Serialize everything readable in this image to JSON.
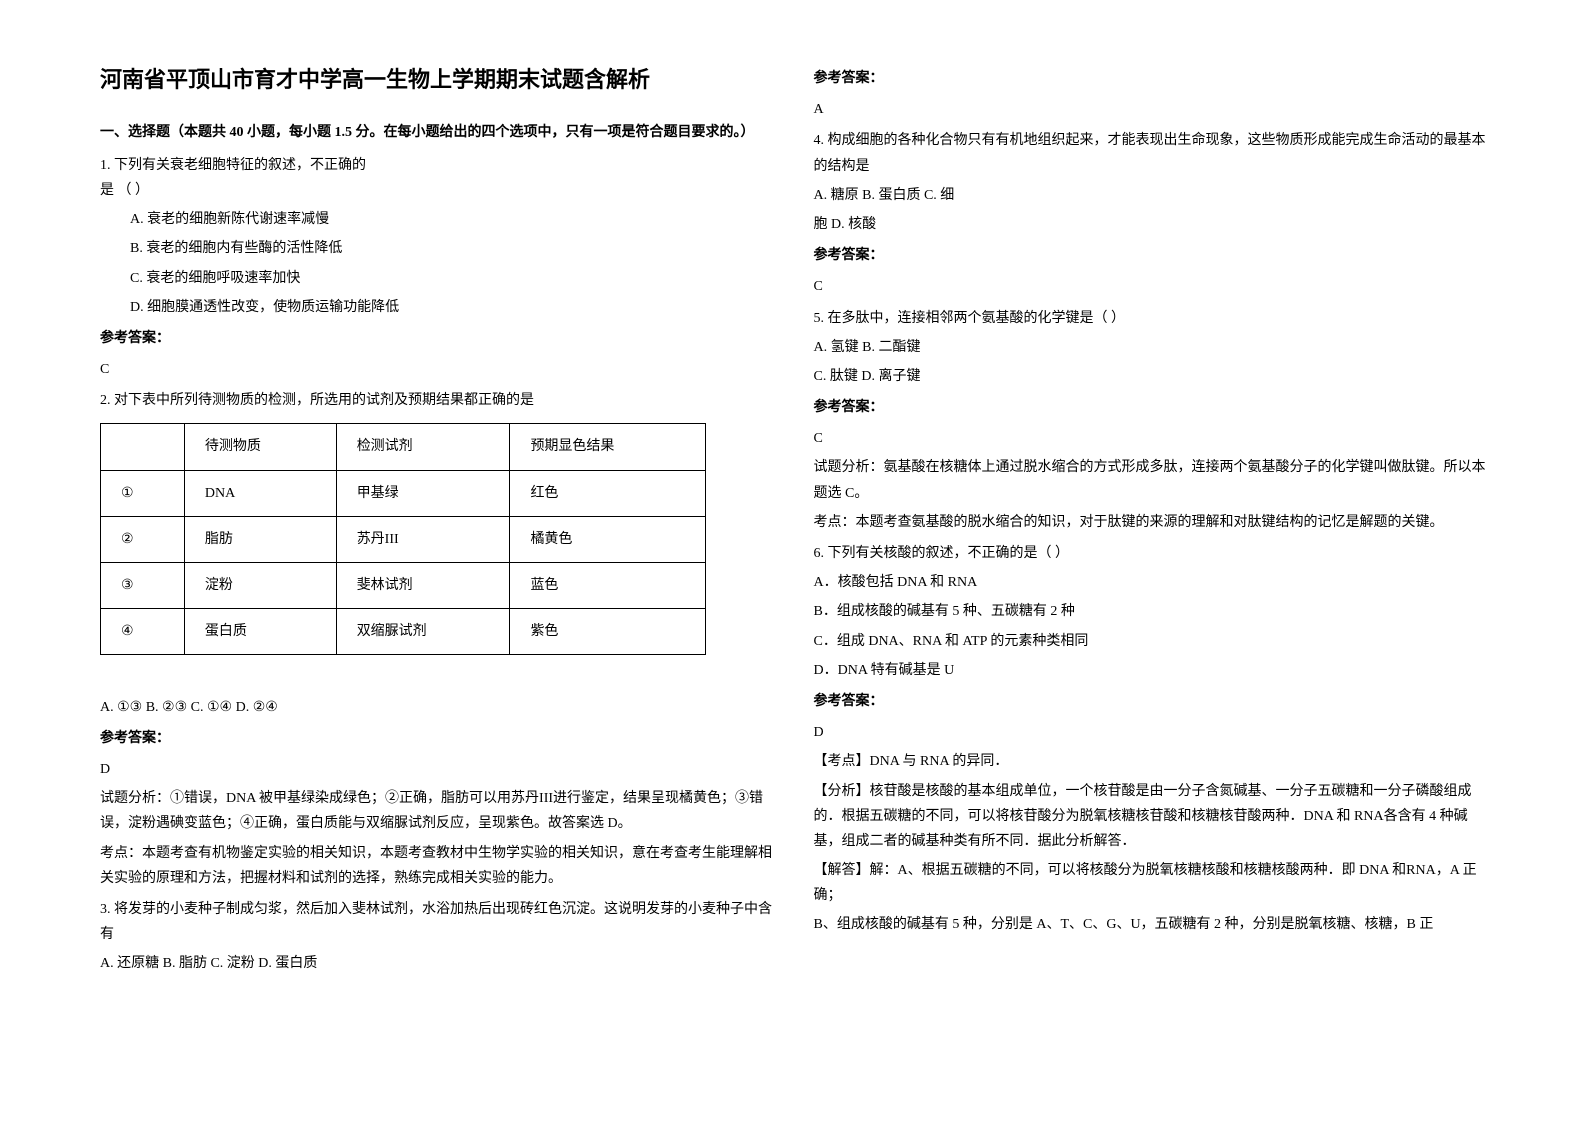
{
  "left": {
    "title": "河南省平顶山市育才中学高一生物上学期期末试题含解析",
    "section1": "一、选择题（本题共 40 小题，每小题 1.5 分。在每小题给出的四个选项中，只有一项是符合题目要求的。）",
    "q1": {
      "stem": "1. 下列有关衰老细胞特征的叙述，不正确的",
      "stem2": "是    （      ）",
      "optA": "A.        衰老的细胞新陈代谢速率减慢",
      "optB": "B.        衰老的细胞内有些酶的活性降低",
      "optC": "C.        衰老的细胞呼吸速率加快",
      "optD": "D.        细胞膜通透性改变，使物质运输功能降低"
    },
    "answerLabel": "参考答案：",
    "q1Answer": "C",
    "q2": {
      "stem": "2. 对下表中所列待测物质的检测，所选用的试剂及预期结果都正确的是",
      "tableHeader": [
        "",
        "待测物质",
        "检测试剂",
        "预期显色结果"
      ],
      "tableRows": [
        [
          "①",
          "DNA",
          "甲基绿",
          "红色"
        ],
        [
          "②",
          "脂肪",
          "苏丹III",
          "橘黄色"
        ],
        [
          "③",
          "淀粉",
          "斐林试剂",
          "蓝色"
        ],
        [
          "④",
          "蛋白质",
          "双缩脲试剂",
          "紫色"
        ]
      ],
      "options": "A.  ①③         B.  ②③         C.  ①④         D.  ②④"
    },
    "q2Answer": "D",
    "q2Analysis1": "试题分析：①错误，DNA 被甲基绿染成绿色；②正确，脂肪可以用苏丹III进行鉴定，结果呈现橘黄色；③错误，淀粉遇碘变蓝色；④正确，蛋白质能与双缩脲试剂反应，呈现紫色。故答案选 D。",
    "q2Analysis2": "考点：本题考查有机物鉴定实验的相关知识，本题考查教材中生物学实验的相关知识，意在考查考生能理解相关实验的原理和方法，把握材料和试剂的选择，熟练完成相关实验的能力。",
    "q3": {
      "stem": "3. 将发芽的小麦种子制成匀浆，然后加入斐林试剂，水浴加热后出现砖红色沉淀。这说明发芽的小麦种子中含有",
      "options": "A. 还原糖      B. 脂肪    C. 淀粉  D. 蛋白质"
    }
  },
  "right": {
    "answerLabel": "参考答案：",
    "q3Answer": "A",
    "q4": {
      "stem": "4. 构成细胞的各种化合物只有有机地组织起来，才能表现出生命现象，这些物质形成能完成生命活动的最基本的结构是",
      "optLine1": "  A. 糖原                           B. 蛋白质                              C. 细",
      "optLine2": "胞                      D. 核酸"
    },
    "q4Answer": "C",
    "q5": {
      "stem": "5. 在多肽中，连接相邻两个氨基酸的化学键是（  ）",
      "optLine1": "A.  氢键       B.  二酯键",
      "optLine2": "C.  肽键       D.  离子键"
    },
    "q5Answer": "C",
    "q5Analysis1": "试题分析：氨基酸在核糖体上通过脱水缩合的方式形成多肽，连接两个氨基酸分子的化学键叫做肽键。所以本题选 C。",
    "q5Analysis2": "考点：本题考查氨基酸的脱水缩合的知识，对于肽键的来源的理解和对肽键结构的记忆是解题的关键。",
    "q6": {
      "stem": "6. 下列有关核酸的叙述，不正确的是（      ）",
      "optA": "A．核酸包括 DNA 和 RNA",
      "optB": "B．组成核酸的碱基有 5 种、五碳糖有 2 种",
      "optC": "C．组成 DNA、RNA 和 ATP 的元素种类相同",
      "optD": "D．DNA 特有碱基是 U"
    },
    "q6Answer": "D",
    "q6Point": "【考点】DNA 与 RNA 的异同．",
    "q6Analysis": "【分析】核苷酸是核酸的基本组成单位，一个核苷酸是由一分子含氮碱基、一分子五碳糖和一分子磷酸组成的．根据五碳糖的不同，可以将核苷酸分为脱氧核糖核苷酸和核糖核苷酸两种．DNA 和 RNA各含有 4 种碱基，组成二者的碱基种类有所不同．据此分析解答．",
    "q6Solve1": "【解答】解：A、根据五碳糖的不同，可以将核酸分为脱氧核糖核酸和核糖核酸两种．即 DNA 和RNA，A 正确；",
    "q6Solve2": "B、组成核酸的碱基有 5 种，分别是 A、T、C、G、U，五碳糖有 2 种，分别是脱氧核糖、核糖，B 正"
  }
}
